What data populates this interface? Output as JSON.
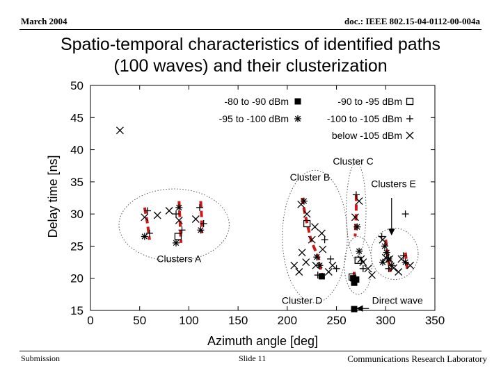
{
  "header": {
    "date": "March 2004",
    "doc_id": "doc.: IEEE 802.15-04-0112-00-004a"
  },
  "slide": {
    "title_line1": "Spatio-temporal characteristics of identified paths",
    "title_line2": "(100 waves) and their clusterization"
  },
  "footer": {
    "left": "Submission",
    "center": "Slide 11",
    "right": "Communications Research Laboratory"
  },
  "chart_data": {
    "type": "scatter",
    "xlabel": "Azimuth angle [deg]",
    "ylabel": "Delay time [ns]",
    "xlim": [
      0,
      350
    ],
    "ylim": [
      15,
      50
    ],
    "xticks": [
      0,
      50,
      100,
      150,
      200,
      250,
      300,
      350
    ],
    "yticks": [
      15,
      20,
      25,
      30,
      35,
      40,
      45,
      50
    ],
    "grid": false,
    "legend_position": "top-right",
    "legend": [
      {
        "label": "-80 to -90 dBm",
        "marker": "filled-square"
      },
      {
        "label": "-90 to -95 dBm",
        "marker": "open-square"
      },
      {
        "label": "-95 to -100 dBm",
        "marker": "asterisk"
      },
      {
        "label": "-100 to -105 dBm",
        "marker": "plus"
      },
      {
        "label": "below -105 dBm",
        "marker": "cross"
      }
    ],
    "series": [
      {
        "name": "-80 to -90 dBm",
        "marker": "filled-square",
        "points": [
          [
            235,
            20.3
          ],
          [
            268,
            19.3
          ],
          [
            267,
            20.0
          ],
          [
            270,
            19.8
          ],
          [
            268,
            15.2
          ]
        ]
      },
      {
        "name": "-90 to -95 dBm",
        "marker": "open-square",
        "points": [
          [
            220,
            28.5
          ],
          [
            89,
            26.5
          ],
          [
            266,
            20.2
          ],
          [
            272,
            22.8
          ]
        ]
      },
      {
        "name": "-95 to -100 dBm",
        "marker": "asterisk",
        "points": [
          [
            55,
            26.5
          ],
          [
            87,
            25.5
          ],
          [
            112,
            27.5
          ],
          [
            90,
            31.0
          ],
          [
            217,
            32.0
          ],
          [
            230,
            23.3
          ],
          [
            233,
            22.0
          ],
          [
            271,
            28.0
          ],
          [
            299,
            25.0
          ],
          [
            301,
            24.0
          ],
          [
            303,
            23.0
          ],
          [
            306,
            22.0
          ],
          [
            297,
            22.5
          ],
          [
            320,
            22.5
          ],
          [
            273,
            24.2
          ]
        ]
      },
      {
        "name": "-100 to -105 dBm",
        "marker": "plus",
        "points": [
          [
            58,
            30.5
          ],
          [
            60,
            27.0
          ],
          [
            87,
            30.0
          ],
          [
            93,
            27.5
          ],
          [
            111,
            31.0
          ],
          [
            115,
            28.5
          ],
          [
            320,
            30.0
          ],
          [
            238,
            26.0
          ],
          [
            244,
            23.0
          ],
          [
            250,
            21.5
          ],
          [
            270,
            33.0
          ],
          [
            277,
            21.5
          ],
          [
            303,
            21.5
          ],
          [
            296,
            26.5
          ],
          [
            318,
            23.5
          ],
          [
            231,
            20.5
          ]
        ]
      },
      {
        "name": "below -105 dBm",
        "marker": "cross",
        "points": [
          [
            30,
            43.0
          ],
          [
            55,
            29.5
          ],
          [
            68,
            29.8
          ],
          [
            80,
            30.5
          ],
          [
            90,
            29.0
          ],
          [
            107,
            29.2
          ],
          [
            214,
            31.5
          ],
          [
            220,
            30.0
          ],
          [
            228,
            28.0
          ],
          [
            235,
            27.0
          ],
          [
            225,
            26.0
          ],
          [
            215,
            24.0
          ],
          [
            207,
            22.0
          ],
          [
            212,
            21.0
          ],
          [
            219,
            22.5
          ],
          [
            229,
            22.0
          ],
          [
            242,
            21.0
          ],
          [
            246,
            22.0
          ],
          [
            236,
            24.5
          ],
          [
            273,
            32.0
          ],
          [
            269,
            29.5
          ],
          [
            275,
            23.0
          ],
          [
            277,
            22.5
          ],
          [
            282,
            21.5
          ],
          [
            286,
            20.5
          ],
          [
            297,
            26.0
          ],
          [
            300,
            23.2
          ],
          [
            304,
            23.0
          ],
          [
            308,
            21.6
          ],
          [
            313,
            21.0
          ],
          [
            316,
            23.0
          ],
          [
            325,
            22.0
          ]
        ]
      }
    ],
    "cluster_paths": [
      [
        [
          55,
          31.0
        ],
        [
          58,
          28.5
        ],
        [
          60,
          26.0
        ]
      ],
      [
        [
          90,
          32.0
        ],
        [
          91,
          29.0
        ],
        [
          92,
          25.5
        ]
      ],
      [
        [
          112,
          32.0
        ],
        [
          113,
          29.5
        ],
        [
          113,
          27.0
        ]
      ],
      [
        [
          215,
          32.5
        ],
        [
          218,
          30.0
        ],
        [
          224,
          26.0
        ],
        [
          232,
          23.0
        ],
        [
          235,
          20.5
        ]
      ],
      [
        [
          270,
          33.0
        ],
        [
          270,
          30.0
        ],
        [
          269,
          26.5
        ]
      ],
      [
        [
          268,
          21.0
        ],
        [
          268,
          19.3
        ]
      ],
      [
        [
          300,
          26.0
        ],
        [
          302,
          23.5
        ],
        [
          305,
          21.0
        ]
      ],
      [
        [
          320,
          24.0
        ],
        [
          322,
          21.5
        ]
      ]
    ],
    "annotations": [
      {
        "text": "Clusters A",
        "x": 90,
        "y": 22.5
      },
      {
        "text": "Cluster B",
        "x": 223,
        "y": 35.2
      },
      {
        "text": "Cluster C",
        "x": 267,
        "y": 37.7
      },
      {
        "text": "Clusters E",
        "x": 308,
        "y": 34.2
      },
      {
        "text": "Cluster D",
        "x": 215,
        "y": 16.0
      },
      {
        "text": "Direct wave",
        "x": 312,
        "y": 16.0
      }
    ],
    "cluster_ellipses": [
      {
        "cx": 85,
        "cy": 28.3,
        "rx": 56,
        "ry": 5.6
      },
      {
        "cx": 228,
        "cy": 26.5,
        "rx": 33,
        "ry": 10.3
      },
      {
        "cx": 270,
        "cy": 30.5,
        "rx": 10,
        "ry": 7.5
      },
      {
        "cx": 272,
        "cy": 22.0,
        "rx": 14,
        "ry": 4.5
      },
      {
        "cx": 309,
        "cy": 23.8,
        "rx": 24,
        "ry": 4.0
      }
    ],
    "arrows": [
      {
        "from": [
          306,
          32.5
        ],
        "to": [
          306,
          26.8
        ]
      },
      {
        "from": [
          283,
          15.3
        ],
        "to": [
          271,
          15.3
        ]
      }
    ]
  }
}
